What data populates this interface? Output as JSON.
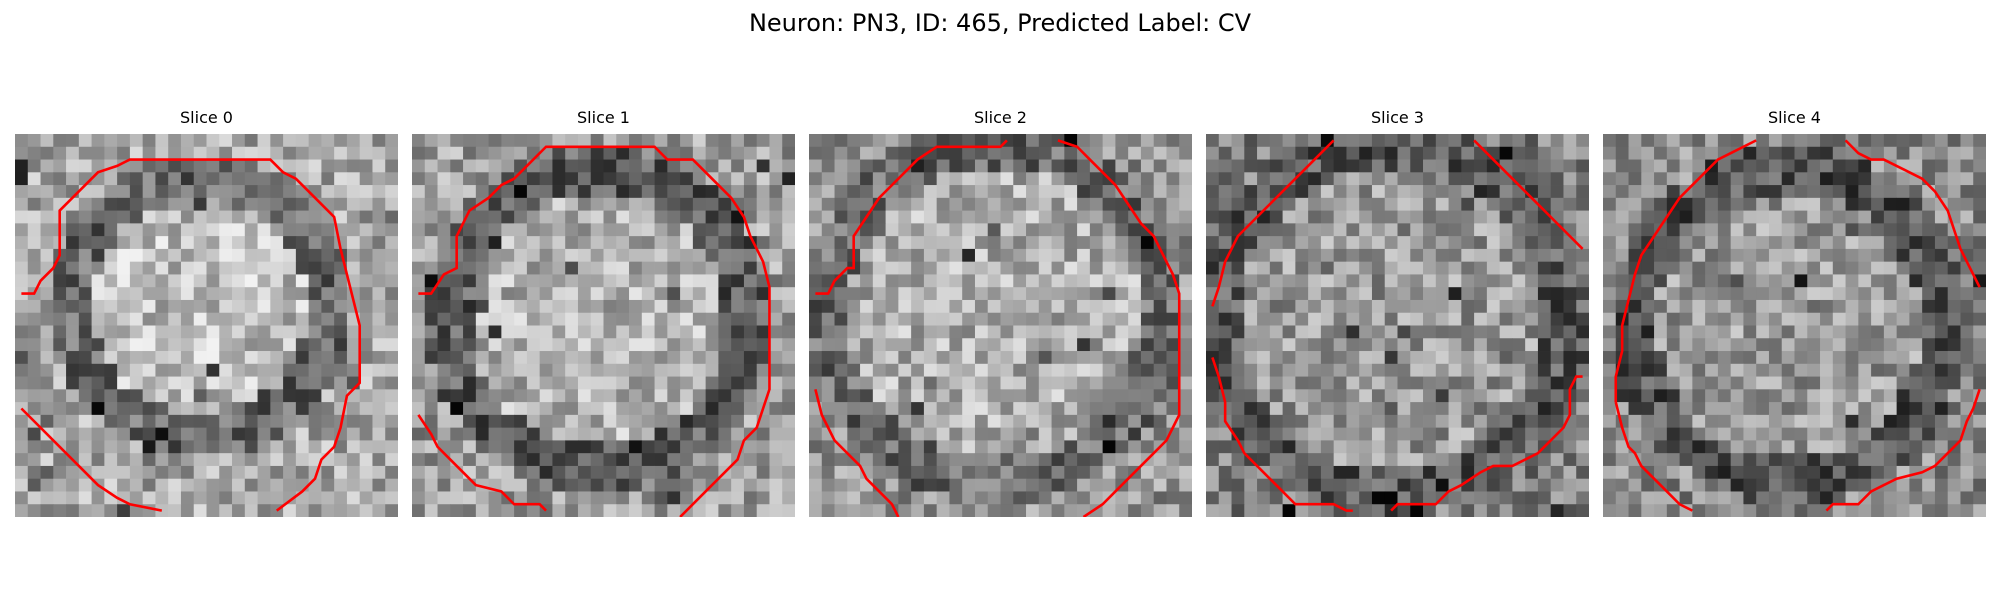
{
  "figure": {
    "title": "Neuron: PN3, ID: 465, Predicted Label: CV"
  },
  "contour_color": "#ff0000",
  "panels": [
    {
      "title": "Slice 0"
    },
    {
      "title": "Slice 1"
    },
    {
      "title": "Slice 2"
    },
    {
      "title": "Slice 3"
    },
    {
      "title": "Slice 4"
    }
  ]
}
